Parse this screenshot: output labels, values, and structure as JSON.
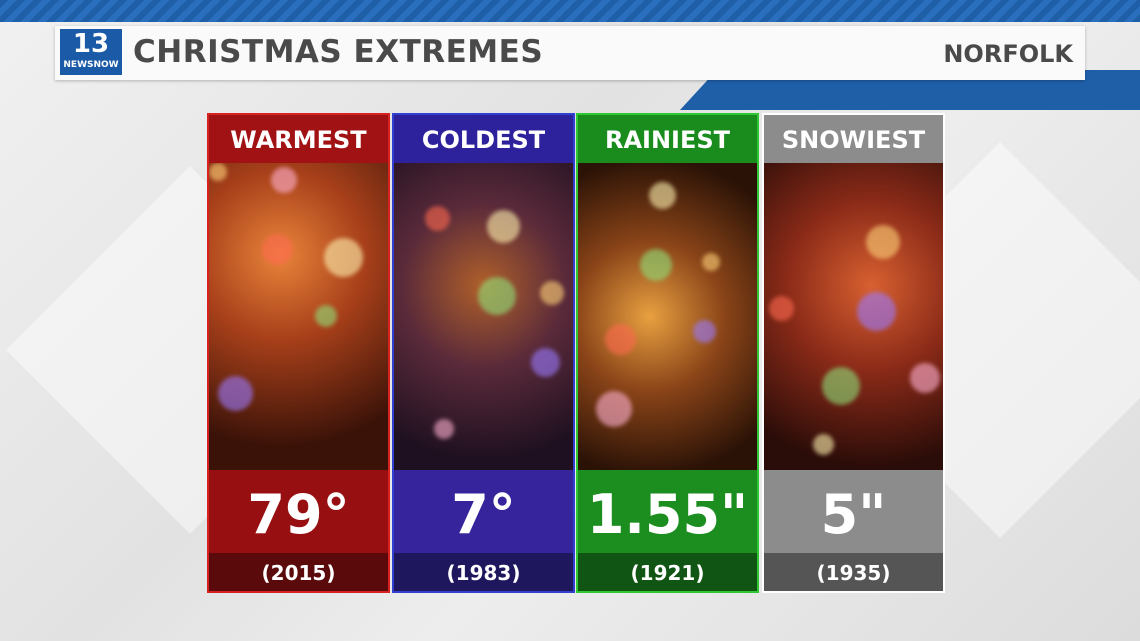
{
  "header": {
    "logo": {
      "number": "13",
      "brand": "NEWSNOW"
    },
    "title": "CHRISTMAS EXTREMES",
    "location": "NORFOLK"
  },
  "cards": [
    {
      "label": "WARMEST",
      "value": "79°",
      "year": "(2015)"
    },
    {
      "label": "COLDEST",
      "value": "7°",
      "year": "(1983)"
    },
    {
      "label": "RAINIEST",
      "value": "1.55\"",
      "year": "(1921)"
    },
    {
      "label": "SNOWIEST",
      "value": "5\"",
      "year": "(1935)"
    }
  ]
}
